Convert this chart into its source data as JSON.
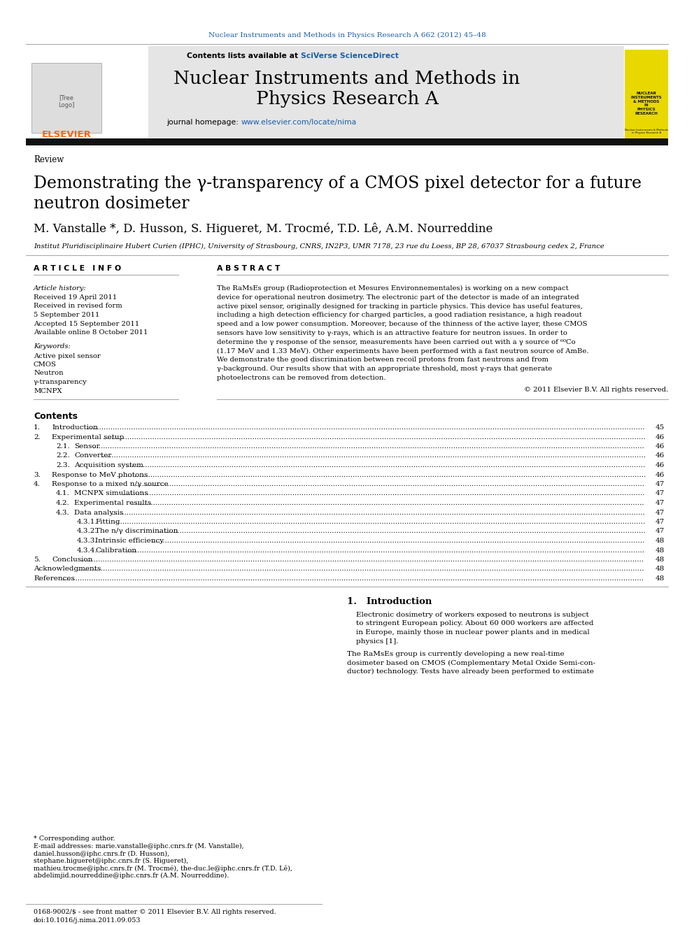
{
  "journal_ref": "Nuclear Instruments and Methods in Physics Research A 662 (2012) 45–48",
  "journal_ref_color": "#1a5fa8",
  "journal_title_line1": "Nuclear Instruments and Methods in",
  "journal_title_line2": "Physics Research A",
  "contents_avail": "Contents lists available at ",
  "sciverse_text": "SciVerse ScienceDirect",
  "sciverse_color": "#1a5fa8",
  "homepage_prefix": "journal homepage: ",
  "homepage_url": "www.elsevier.com/locate/nima",
  "homepage_color": "#1a5fa8",
  "article_type": "Review",
  "paper_title_line1": "Demonstrating the γ-transparency of a CMOS pixel detector for a future",
  "paper_title_line2": "neutron dosimeter",
  "authors": "M. Vanstalle *, D. Husson, S. Higueret, M. Trocmé, T.D. Lê, A.M. Nourreddine",
  "affiliation": "Institut Pluridisciplinaire Hubert Curien (IPHC), University of Strasbourg, CNRS, IN2P3, UMR 7178, 23 rue du Loess, BP 28, 67037 Strasbourg cedex 2, France",
  "art_info_header": "A R T I C L E   I N F O",
  "abstract_header": "A B S T R A C T",
  "history_header": "Article history:",
  "history_lines": [
    "Received 19 April 2011",
    "Received in revised form",
    "5 September 2011",
    "Accepted 15 September 2011",
    "Available online 8 October 2011"
  ],
  "keywords_header": "Keywords:",
  "keywords": [
    "Active pixel sensor",
    "CMOS",
    "Neutron",
    "γ-transparency",
    "MCNPX"
  ],
  "abstract_lines": [
    "The RaMsEs group (Radioprotection et Mesures Environnementales) is working on a new compact",
    "device for operational neutron dosimetry. The electronic part of the detector is made of an integrated",
    "active pixel sensor, originally designed for tracking in particle physics. This device has useful features,",
    "including a high detection efficiency for charged particles, a good radiation resistance, a high readout",
    "speed and a low power consumption. Moreover, because of the thinness of the active layer, these CMOS",
    "sensors have low sensitivity to γ-rays, which is an attractive feature for neutron issues. In order to",
    "determine the γ response of the sensor, measurements have been carried out with a γ source of ⁶⁰Co",
    "(1.17 MeV and 1.33 MeV). Other experiments have been performed with a fast neutron source of AmBe.",
    "We demonstrate the good discrimination between recoil protons from fast neutrons and from",
    "γ-background. Our results show that with an appropriate threshold, most γ-rays that generate",
    "photoelectrons can be removed from detection."
  ],
  "copyright": "© 2011 Elsevier B.V. All rights reserved.",
  "contents_header": "Contents",
  "toc": [
    {
      "num": "1.",
      "indent": 0,
      "title": "Introduction",
      "page": "45"
    },
    {
      "num": "2.",
      "indent": 0,
      "title": "Experimental setup",
      "page": "46"
    },
    {
      "num": "2.1.",
      "indent": 1,
      "title": "Sensor",
      "page": "46"
    },
    {
      "num": "2.2.",
      "indent": 1,
      "title": "Converter",
      "page": "46"
    },
    {
      "num": "2.3.",
      "indent": 1,
      "title": "Acquisition system",
      "page": "46"
    },
    {
      "num": "3.",
      "indent": 0,
      "title": "Response to MeV photons",
      "page": "46"
    },
    {
      "num": "4.",
      "indent": 0,
      "title": "Response to a mixed n/γ source",
      "page": "47"
    },
    {
      "num": "4.1.",
      "indent": 1,
      "title": "MCNPX simulations",
      "page": "47"
    },
    {
      "num": "4.2.",
      "indent": 1,
      "title": "Experimental results",
      "page": "47"
    },
    {
      "num": "4.3.",
      "indent": 1,
      "title": "Data analysis",
      "page": "47"
    },
    {
      "num": "4.3.1.",
      "indent": 2,
      "title": "Fitting",
      "page": "47"
    },
    {
      "num": "4.3.2.",
      "indent": 2,
      "title": "The n/γ discrimination",
      "page": "47"
    },
    {
      "num": "4.3.3.",
      "indent": 2,
      "title": "Intrinsic efficiency",
      "page": "48"
    },
    {
      "num": "4.3.4.",
      "indent": 2,
      "title": "Calibration",
      "page": "48"
    },
    {
      "num": "5.",
      "indent": 0,
      "title": "Conclusion",
      "page": "48"
    },
    {
      "num": "",
      "indent": 0,
      "title": "Acknowledgments",
      "page": "48"
    },
    {
      "num": "",
      "indent": 0,
      "title": "References",
      "page": "48"
    }
  ],
  "intro_title": "1.   Introduction",
  "intro_lines1": [
    "Electronic dosimetry of workers exposed to neutrons is subject",
    "to stringent European policy. About 60 000 workers are affected",
    "in Europe, mainly those in nuclear power plants and in medical",
    "physics [1]."
  ],
  "intro_lines2": [
    "The RaMsEs group is currently developing a new real-time",
    "dosimeter based on CMOS (Complementary Metal Oxide Semi-con-",
    "ductor) technology. Tests have already been performed to estimate"
  ],
  "footnote1": "* Corresponding author.",
  "footnote_emails": [
    "E-mail addresses: marie.vanstalle@iphc.cnrs.fr (M. Vanstalle),",
    "daniel.husson@iphc.cnrs.fr (D. Husson),",
    "stephane.higueret@iphc.cnrs.fr (S. Higueret),",
    "mathieu.trocme@iphc.cnrs.fr (M. Trocmé), the-duc.le@iphc.cnrs.fr (T.D. Lê),",
    "abdelimjid.nourreddine@iphc.cnrs.fr (A.M. Nourreddine)."
  ],
  "footer_issn": "0168-9002/$ - see front matter © 2011 Elsevier B.V. All rights reserved.",
  "footer_doi": "doi:10.1016/j.nima.2011.09.053",
  "header_bg": "#e5e5e5",
  "yellow_bg": "#e8d800",
  "black_bar": "#111111"
}
